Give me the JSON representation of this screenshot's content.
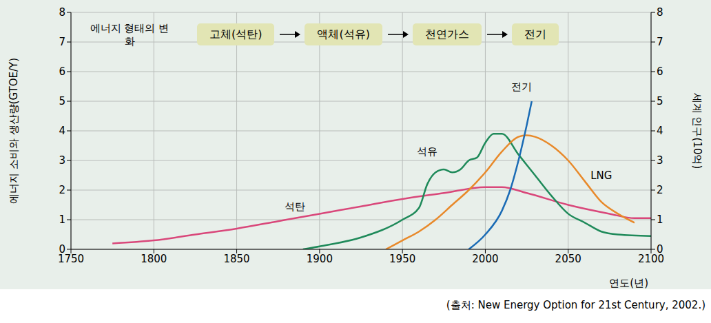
{
  "chart_data": {
    "type": "line",
    "stage_title": "에너지 형태의 변화",
    "stages": [
      "고체(석탄)",
      "액체(석유)",
      "천연가스",
      "전기"
    ],
    "x_label": "연도(년)",
    "y_label": "에너지 소비와 생산량(GTOE/Y)",
    "y2_label": "세계 인구(10억)",
    "source": "(출처: New Energy Option for 21st Century, 2002.)",
    "xlim": [
      1750,
      2100
    ],
    "xticks": [
      1750,
      1800,
      1850,
      1900,
      1950,
      2000,
      2050,
      2100
    ],
    "ylim": [
      0,
      8
    ],
    "yticks": [
      0,
      1,
      2,
      3,
      4,
      5,
      6,
      7,
      8
    ],
    "y2lim": [
      0,
      8
    ],
    "y2ticks": [
      0,
      1,
      2,
      3,
      4,
      5,
      6,
      7,
      8
    ],
    "grid": true,
    "series": [
      {
        "name": "석탄",
        "color": "#d9477a",
        "x": [
          1775,
          1800,
          1825,
          1850,
          1875,
          1900,
          1925,
          1950,
          1975,
          2000,
          2010,
          2025,
          2050,
          2075,
          2090,
          2100
        ],
        "values": [
          0.2,
          0.3,
          0.5,
          0.7,
          0.95,
          1.2,
          1.45,
          1.7,
          1.9,
          2.1,
          2.1,
          1.9,
          1.5,
          1.2,
          1.05,
          1.05
        ]
      },
      {
        "name": "석유",
        "color": "#1f8a5a",
        "x": [
          1890,
          1900,
          1925,
          1950,
          1960,
          1965,
          1970,
          1975,
          1980,
          1985,
          1990,
          1995,
          2000,
          2005,
          2010,
          2020,
          2030,
          2040,
          2050,
          2060,
          2070,
          2080,
          2100
        ],
        "values": [
          0,
          0.1,
          0.4,
          1.0,
          1.4,
          2.2,
          2.6,
          2.7,
          2.6,
          2.7,
          3.0,
          3.1,
          3.6,
          3.9,
          3.9,
          3.2,
          2.5,
          1.8,
          1.2,
          0.9,
          0.6,
          0.5,
          0.45
        ]
      },
      {
        "name": "LNG",
        "color": "#e8892a",
        "x": [
          1940,
          1950,
          1960,
          1970,
          1980,
          1990,
          2000,
          2010,
          2020,
          2025,
          2030,
          2040,
          2050,
          2060,
          2070,
          2080,
          2090
        ],
        "values": [
          0,
          0.3,
          0.6,
          1.0,
          1.5,
          2.0,
          2.6,
          3.3,
          3.8,
          3.85,
          3.8,
          3.5,
          3.0,
          2.3,
          1.6,
          1.2,
          0.9
        ]
      },
      {
        "name": "전기",
        "color": "#1a6bb5",
        "x": [
          1990,
          2000,
          2010,
          2015,
          2020,
          2025,
          2028
        ],
        "values": [
          0,
          0.5,
          1.3,
          2.0,
          3.0,
          4.2,
          5.0
        ]
      }
    ],
    "annotations": [
      {
        "text": "석탄",
        "x": 1885,
        "y": 1.45
      },
      {
        "text": "석유",
        "x": 1965,
        "y": 3.3
      },
      {
        "text": "LNG",
        "x": 2070,
        "y": 2.5
      },
      {
        "text": "전기",
        "x": 2022,
        "y": 5.5
      }
    ]
  }
}
